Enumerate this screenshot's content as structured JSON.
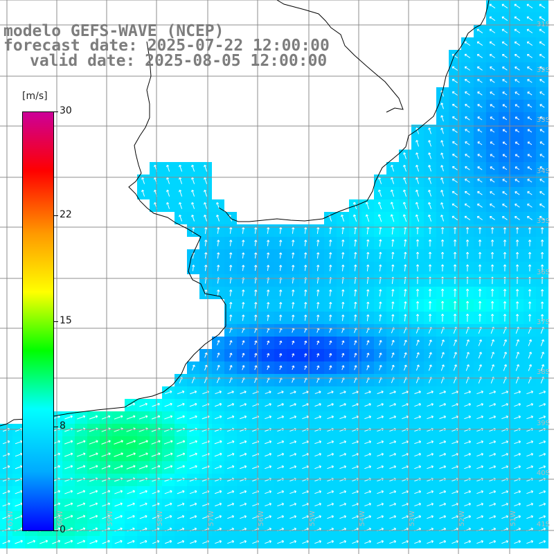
{
  "title": {
    "line1": "modelo GEFS-WAVE (NCEP)",
    "line2": "forecast date: 2025-07-22 12:00:00",
    "line3": "valid date: 2025-08-05 12:00:00"
  },
  "colorbar": {
    "units": "[m/s]",
    "ticks": [
      "30",
      "22",
      "15",
      "8",
      "0"
    ],
    "tick_values": [
      30,
      22,
      15,
      8,
      0
    ],
    "range": [
      0,
      30
    ],
    "colors": [
      "#0000ff",
      "#00aaff",
      "#00ffff",
      "#00ff00",
      "#ffff00",
      "#ff9900",
      "#ff0000",
      "#cc0099"
    ]
  },
  "map": {
    "variable": "wind speed",
    "latitude_labels": [
      "31S",
      "32S",
      "33S",
      "34S",
      "35S",
      "36S",
      "37S",
      "38S",
      "39S",
      "40S",
      "41S"
    ],
    "longitude_labels": [
      "61W",
      "60W",
      "59W",
      "58W",
      "57W",
      "56W",
      "55W",
      "54W",
      "53W",
      "52W",
      "51W"
    ],
    "land_color": "#ffffff",
    "grid_color": "#8c8c8c",
    "coast_color": "#000000",
    "vector_color": "#ffffff"
  }
}
